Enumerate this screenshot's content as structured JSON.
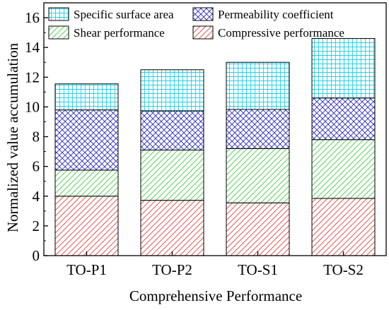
{
  "chart_data": {
    "type": "bar",
    "stacked": true,
    "categories": [
      "TO-P1",
      "TO-P2",
      "TO-S1",
      "TO-S2"
    ],
    "series": [
      {
        "name": "Compressive performance",
        "values": [
          4.0,
          3.72,
          3.55,
          3.85
        ],
        "color": "#e8403a",
        "pattern": "diagonal"
      },
      {
        "name": "Shear performance",
        "values": [
          1.75,
          3.38,
          3.65,
          3.95
        ],
        "color": "#3fcf3f",
        "pattern": "diagonal"
      },
      {
        "name": "Permeability coefficient",
        "values": [
          4.05,
          2.63,
          2.63,
          2.8
        ],
        "color": "#2727c8",
        "pattern": "crosshatch"
      },
      {
        "name": "Specific surface area",
        "values": [
          1.75,
          2.77,
          3.17,
          4.0
        ],
        "color": "#22cfe6",
        "pattern": "grid"
      }
    ],
    "legend_order": [
      "Specific surface area",
      "Permeability coefficient",
      "Shear performance",
      "Compressive performance"
    ],
    "legend_position": "top",
    "title": "",
    "xlabel": "Comprehensive Performance",
    "ylabel": "Normalized value accumulation",
    "ylim": [
      0,
      17
    ],
    "yticks": [
      0,
      2,
      4,
      6,
      8,
      10,
      12,
      14,
      16
    ],
    "grid": false
  }
}
